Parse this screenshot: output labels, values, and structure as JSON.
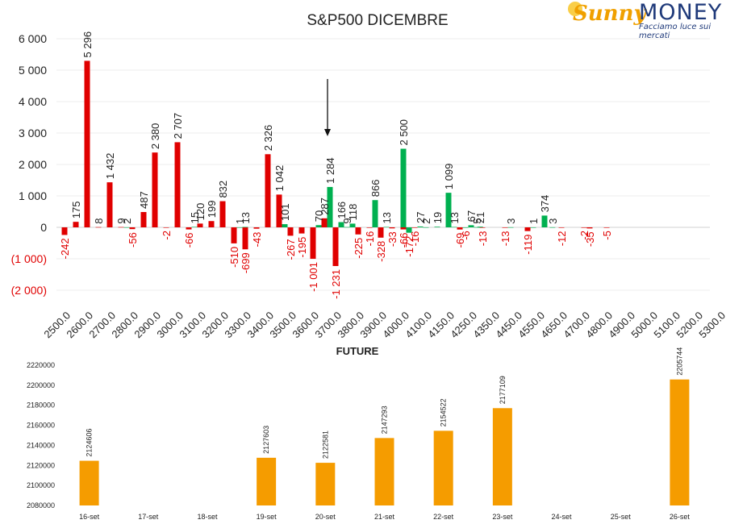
{
  "colors": {
    "negative": "#e00000",
    "positive": "#00b050",
    "future": "#f59c00",
    "axis_text_neg": "#e00000"
  },
  "logo": {
    "word_a": "Sunny",
    "word_b": "MONEY",
    "tagline": "Facciamo luce sui mercati"
  },
  "chart_data": [
    {
      "type": "bar",
      "title": "S&P500 DICEMBRE",
      "xlabel": "",
      "ylabel": "",
      "ylim": [
        -2000,
        6000
      ],
      "y_ticks": [
        {
          "value": 6000,
          "label": "6 000"
        },
        {
          "value": 5000,
          "label": "5 000"
        },
        {
          "value": 4000,
          "label": "4 000"
        },
        {
          "value": 3000,
          "label": "3 000"
        },
        {
          "value": 2000,
          "label": "2 000"
        },
        {
          "value": 1000,
          "label": "1 000"
        },
        {
          "value": 0,
          "label": "0"
        },
        {
          "value": -1000,
          "label": "(1 000)"
        },
        {
          "value": -2000,
          "label": "(2 000)"
        }
      ],
      "x_ticks": [
        "2500.0",
        "2600.0",
        "2700.0",
        "2800.0",
        "2900.0",
        "3000.0",
        "3100.0",
        "3200.0",
        "3300.0",
        "3400.0",
        "3500.0",
        "3600.0",
        "3700.0",
        "3800.0",
        "3900.0",
        "4000.0",
        "4100.0",
        "4150.0",
        "4250.0",
        "4350.0",
        "4450.0",
        "4550.0",
        "4650.0",
        "4700.0",
        "4800.0",
        "4900.0",
        "5000.0",
        "5100.0",
        "5200.0",
        "5300.0"
      ],
      "arrow_strike": 3700,
      "series": [
        {
          "name": "PUT",
          "points": [
            {
              "strike": 2500,
              "value": -242,
              "label": "-242"
            },
            {
              "strike": 2550,
              "value": 175,
              "label": "175"
            },
            {
              "strike": 2600,
              "value": 5296,
              "label": "5 296"
            },
            {
              "strike": 2650,
              "value": 8,
              "label": "8"
            },
            {
              "strike": 2700,
              "value": 1432,
              "label": "1 432"
            },
            {
              "strike": 2750,
              "value": 9,
              "label": "9"
            },
            {
              "strike": 2800,
              "value": -56,
              "label": "-56"
            },
            {
              "strike": 2850,
              "value": 487,
              "label": "487"
            },
            {
              "strike": 2900,
              "value": 2380,
              "label": "2 380"
            },
            {
              "strike": 2950,
              "value": -2,
              "label": "-2"
            },
            {
              "strike": 3000,
              "value": 2707,
              "label": "2 707"
            },
            {
              "strike": 3050,
              "value": -66,
              "label": "-66"
            },
            {
              "strike": 3100,
              "value": 120,
              "label": "120"
            },
            {
              "strike": 3150,
              "value": 199,
              "label": "199"
            },
            {
              "strike": 3200,
              "value": 832,
              "label": "832"
            },
            {
              "strike": 3250,
              "value": -510,
              "label": "-510"
            },
            {
              "strike": 3300,
              "value": -699,
              "label": "-699"
            },
            {
              "strike": 3350,
              "value": -43,
              "label": "-43"
            },
            {
              "strike": 3400,
              "value": 2326,
              "label": "2 326"
            },
            {
              "strike": 3450,
              "value": 1042,
              "label": "1 042"
            },
            {
              "strike": 3500,
              "value": -267,
              "label": "-267"
            },
            {
              "strike": 3550,
              "value": -195,
              "label": "-195"
            },
            {
              "strike": 3600,
              "value": -1001,
              "label": "-1 001"
            },
            {
              "strike": 3650,
              "value": 287,
              "label": "287"
            },
            {
              "strike": 3700,
              "value": -1231,
              "label": "-1 231"
            },
            {
              "strike": 3800,
              "value": -225,
              "label": "-225"
            },
            {
              "strike": 3850,
              "value": -16,
              "label": "-16"
            },
            {
              "strike": 3900,
              "value": -328,
              "label": "-328"
            },
            {
              "strike": 3950,
              "value": -33,
              "label": "-33"
            },
            {
              "strike": 4000,
              "value": -66,
              "label": "-66"
            },
            {
              "strike": 4050,
              "value": -16,
              "label": "-16"
            },
            {
              "strike": 4250,
              "value": -69,
              "label": "-69"
            },
            {
              "strike": 4350,
              "value": -13,
              "label": "-13"
            },
            {
              "strike": 4450,
              "value": -13,
              "label": "-13"
            },
            {
              "strike": 4550,
              "value": -119,
              "label": "-119"
            },
            {
              "strike": 4700,
              "value": -12,
              "label": "-12"
            },
            {
              "strike": 4800,
              "value": -2,
              "label": "-2"
            },
            {
              "strike": 4825,
              "value": -35,
              "label": "-35"
            },
            {
              "strike": 4900,
              "value": -5,
              "label": "-5"
            }
          ]
        },
        {
          "name": "CALL",
          "points": [
            {
              "strike": 2775,
              "value": 2,
              "label": "2"
            },
            {
              "strike": 3075,
              "value": 15,
              "label": "15"
            },
            {
              "strike": 3275,
              "value": 1,
              "label": "1"
            },
            {
              "strike": 3300,
              "value": 13,
              "label": "13"
            },
            {
              "strike": 3475,
              "value": 101,
              "label": "101"
            },
            {
              "strike": 3625,
              "value": 70,
              "label": "70"
            },
            {
              "strike": 3675,
              "value": 1284,
              "label": "1 284"
            },
            {
              "strike": 3725,
              "value": 166,
              "label": "166"
            },
            {
              "strike": 3750,
              "value": 9,
              "label": "9"
            },
            {
              "strike": 3775,
              "value": 118,
              "label": "118"
            },
            {
              "strike": 3875,
              "value": 866,
              "label": "866"
            },
            {
              "strike": 3925,
              "value": 13,
              "label": "13"
            },
            {
              "strike": 4000,
              "value": 2500,
              "label": "2 500"
            },
            {
              "strike": 4025,
              "value": -172,
              "label": "-172"
            },
            {
              "strike": 4075,
              "value": 27,
              "label": "27"
            },
            {
              "strike": 4100,
              "value": 2,
              "label": "2"
            },
            {
              "strike": 4150,
              "value": 19,
              "label": "19"
            },
            {
              "strike": 4200,
              "value": 1099,
              "label": "1 099"
            },
            {
              "strike": 4225,
              "value": 13,
              "label": "13"
            },
            {
              "strike": 4275,
              "value": -6,
              "label": "-6"
            },
            {
              "strike": 4300,
              "value": 67,
              "label": "67"
            },
            {
              "strike": 4325,
              "value": 5,
              "label": "5"
            },
            {
              "strike": 4340,
              "value": 21,
              "label": "21"
            },
            {
              "strike": 4475,
              "value": 3,
              "label": "3"
            },
            {
              "strike": 4575,
              "value": 1,
              "label": "1"
            },
            {
              "strike": 4625,
              "value": 374,
              "label": "374"
            },
            {
              "strike": 4660,
              "value": 3,
              "label": "3"
            }
          ]
        }
      ]
    },
    {
      "type": "bar",
      "title": "FUTURE",
      "xlabel": "",
      "ylabel": "",
      "ylim": [
        2080000,
        2220000
      ],
      "y_ticks": [
        "2220000",
        "2200000",
        "2180000",
        "2160000",
        "2140000",
        "2120000",
        "2100000",
        "2080000"
      ],
      "categories": [
        "16-set",
        "17-set",
        "18-set",
        "19-set",
        "20-set",
        "21-set",
        "22-set",
        "23-set",
        "24-set",
        "25-set",
        "26-set"
      ],
      "values": [
        2124606,
        null,
        null,
        2127603,
        2122581,
        2147293,
        2154522,
        2177109,
        null,
        null,
        2205744
      ],
      "labels": [
        "2124606",
        "",
        "",
        "2127603",
        "2122581",
        "2147293",
        "2154522",
        "2177109",
        "",
        "",
        "2205744"
      ]
    }
  ]
}
